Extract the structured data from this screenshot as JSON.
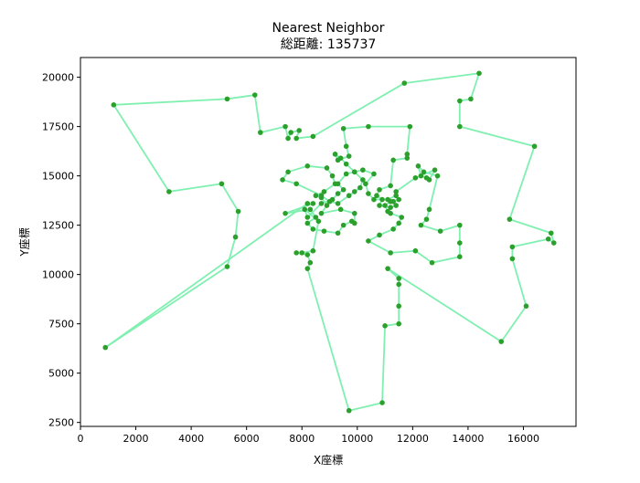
{
  "chart_data": {
    "type": "line",
    "title": "Nearest Neighbor",
    "subtitle": "総距離: 135737",
    "xlabel": "X座標",
    "ylabel": "Y座標",
    "xlim": [
      0,
      17900
    ],
    "ylim": [
      2300,
      21000
    ],
    "xticks": [
      0,
      2000,
      4000,
      6000,
      8000,
      10000,
      12000,
      14000,
      16000
    ],
    "yticks": [
      2500,
      5000,
      7500,
      10000,
      12500,
      15000,
      17500,
      20000
    ],
    "grid": false,
    "line_color": "#7ff0b0",
    "point_color": "#2ca02c",
    "points": [
      [
        8400,
        13600
      ],
      [
        7400,
        13100
      ],
      [
        8300,
        13300
      ],
      [
        8500,
        12900
      ],
      [
        8200,
        12600
      ],
      [
        8400,
        12300
      ],
      [
        8800,
        12200
      ],
      [
        9300,
        12100
      ],
      [
        9500,
        12500
      ],
      [
        9800,
        12700
      ],
      [
        9900,
        12600
      ],
      [
        9900,
        13100
      ],
      [
        9400,
        13300
      ],
      [
        8700,
        13100
      ],
      [
        8900,
        13500
      ],
      [
        8700,
        13900
      ],
      [
        8500,
        14000
      ],
      [
        8800,
        14200
      ],
      [
        9200,
        14600
      ],
      [
        9100,
        15000
      ],
      [
        8900,
        15400
      ],
      [
        8200,
        15500
      ],
      [
        7500,
        15200
      ],
      [
        7300,
        14800
      ],
      [
        7800,
        14600
      ],
      [
        8700,
        14000
      ],
      [
        9000,
        13700
      ],
      [
        9300,
        13600
      ],
      [
        9700,
        14000
      ],
      [
        9900,
        14200
      ],
      [
        10100,
        14400
      ],
      [
        10200,
        14800
      ],
      [
        9900,
        15200
      ],
      [
        9600,
        15600
      ],
      [
        9400,
        15900
      ],
      [
        9200,
        16100
      ],
      [
        9300,
        15800
      ],
      [
        9700,
        16000
      ],
      [
        9600,
        16500
      ],
      [
        9500,
        17400
      ],
      [
        10400,
        17500
      ],
      [
        11900,
        17500
      ],
      [
        11800,
        16100
      ],
      [
        11800,
        15900
      ],
      [
        11300,
        15800
      ],
      [
        11200,
        14500
      ],
      [
        10800,
        14300
      ],
      [
        10700,
        14000
      ],
      [
        10900,
        13800
      ],
      [
        10800,
        13500
      ],
      [
        11200,
        13400
      ],
      [
        11400,
        13500
      ],
      [
        11300,
        13700
      ],
      [
        11500,
        13800
      ],
      [
        11200,
        13700
      ],
      [
        11000,
        13500
      ],
      [
        11100,
        13200
      ],
      [
        11200,
        13100
      ],
      [
        11600,
        12900
      ],
      [
        11500,
        12600
      ],
      [
        11300,
        12300
      ],
      [
        10800,
        12000
      ],
      [
        10400,
        11700
      ],
      [
        11200,
        11100
      ],
      [
        12100,
        11200
      ],
      [
        12700,
        10600
      ],
      [
        13700,
        10900
      ],
      [
        13700,
        11600
      ],
      [
        13700,
        12500
      ],
      [
        13000,
        12200
      ],
      [
        12300,
        12500
      ],
      [
        12500,
        12800
      ],
      [
        12600,
        13300
      ],
      [
        12900,
        15000
      ],
      [
        12400,
        15200
      ],
      [
        12200,
        15500
      ],
      [
        12300,
        15000
      ],
      [
        12500,
        14900
      ],
      [
        12600,
        14800
      ],
      [
        12800,
        15300
      ],
      [
        12100,
        14900
      ],
      [
        11400,
        14200
      ],
      [
        11400,
        14000
      ],
      [
        11100,
        13800
      ],
      [
        10600,
        13800
      ],
      [
        10400,
        14100
      ],
      [
        10300,
        14600
      ],
      [
        10600,
        15100
      ],
      [
        10200,
        15300
      ],
      [
        9900,
        15200
      ],
      [
        9600,
        15100
      ],
      [
        9300,
        14600
      ],
      [
        9500,
        14300
      ],
      [
        9300,
        14100
      ],
      [
        9100,
        13800
      ],
      [
        8700,
        13600
      ],
      [
        8200,
        12900
      ],
      [
        8100,
        13300
      ],
      [
        8600,
        12700
      ],
      [
        8400,
        11200
      ],
      [
        8000,
        11100
      ],
      [
        7800,
        11100
      ],
      [
        8200,
        11000
      ],
      [
        8300,
        10600
      ],
      [
        8200,
        10300
      ],
      [
        9700,
        3100
      ],
      [
        10900,
        3500
      ],
      [
        11000,
        7400
      ],
      [
        11500,
        7500
      ],
      [
        11500,
        8400
      ],
      [
        11500,
        9500
      ],
      [
        11500,
        9800
      ],
      [
        11100,
        10300
      ],
      [
        15200,
        6600
      ],
      [
        16100,
        8400
      ],
      [
        15600,
        10800
      ],
      [
        15600,
        11400
      ],
      [
        16900,
        11800
      ],
      [
        17100,
        11600
      ],
      [
        17000,
        12100
      ],
      [
        15500,
        12800
      ],
      [
        16400,
        16500
      ],
      [
        13700,
        17500
      ],
      [
        13700,
        18800
      ],
      [
        14100,
        18900
      ],
      [
        14400,
        20200
      ],
      [
        11700,
        19700
      ],
      [
        8400,
        17000
      ],
      [
        7800,
        16900
      ],
      [
        7900,
        17300
      ],
      [
        7600,
        17200
      ],
      [
        7500,
        16900
      ],
      [
        7400,
        17500
      ],
      [
        6500,
        17200
      ],
      [
        6300,
        19100
      ],
      [
        5300,
        18900
      ],
      [
        1200,
        18600
      ],
      [
        3200,
        14200
      ],
      [
        5100,
        14600
      ],
      [
        5700,
        13200
      ],
      [
        5600,
        11900
      ],
      [
        5300,
        10400
      ],
      [
        900,
        6300
      ],
      [
        8200,
        13600
      ]
    ]
  }
}
